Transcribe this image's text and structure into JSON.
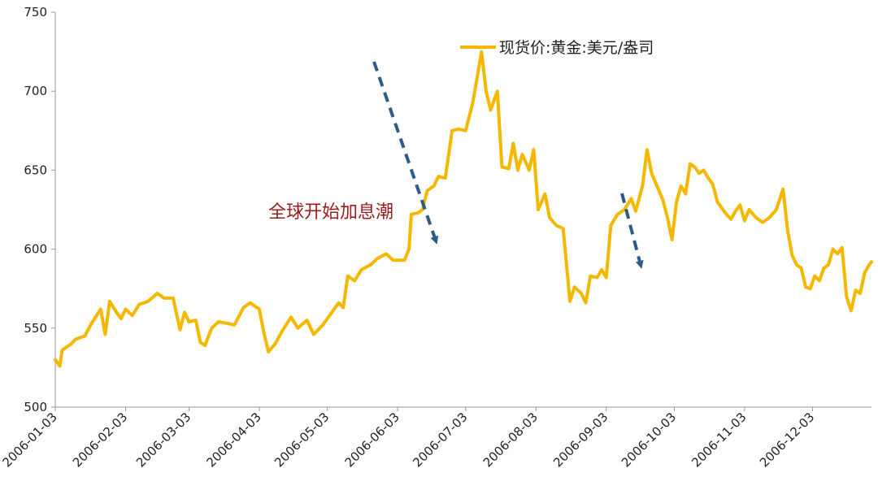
{
  "chart_data": {
    "type": "line",
    "title": "",
    "xlabel": "",
    "ylabel": "",
    "ylim": [
      500,
      750
    ],
    "y_ticks": [
      "500",
      "550",
      "600",
      "650",
      "700",
      "750"
    ],
    "x_ticks": [
      "2006-01-03",
      "2006-02-03",
      "2006-03-03",
      "2006-04-03",
      "2006-05-03",
      "2006-06-03",
      "2006-07-03",
      "2006-08-03",
      "2006-09-03",
      "2006-10-03",
      "2006-11-03",
      "2006-12-03"
    ],
    "x_range": [
      "2006-01-03",
      "2006-12-29"
    ],
    "grid": false,
    "legend": "top-right",
    "series": [
      {
        "name": "现货价:黄金:美元/盎司",
        "color": "#f5b800",
        "points": [
          [
            "2006-01-03",
            530
          ],
          [
            "2006-01-05",
            526
          ],
          [
            "2006-01-06",
            536
          ],
          [
            "2006-01-10",
            540
          ],
          [
            "2006-01-12",
            543
          ],
          [
            "2006-01-16",
            545
          ],
          [
            "2006-01-19",
            553
          ],
          [
            "2006-01-23",
            562
          ],
          [
            "2006-01-25",
            546
          ],
          [
            "2006-01-27",
            567
          ],
          [
            "2006-01-30",
            560
          ],
          [
            "2006-02-01",
            556
          ],
          [
            "2006-02-03",
            562
          ],
          [
            "2006-02-06",
            558
          ],
          [
            "2006-02-09",
            565
          ],
          [
            "2006-02-13",
            567
          ],
          [
            "2006-02-17",
            572
          ],
          [
            "2006-02-20",
            569
          ],
          [
            "2006-02-24",
            569
          ],
          [
            "2006-02-27",
            549
          ],
          [
            "2006-03-01",
            560
          ],
          [
            "2006-03-03",
            554
          ],
          [
            "2006-03-06",
            555
          ],
          [
            "2006-03-08",
            541
          ],
          [
            "2006-03-10",
            539
          ],
          [
            "2006-03-13",
            550
          ],
          [
            "2006-03-16",
            554
          ],
          [
            "2006-03-20",
            553
          ],
          [
            "2006-03-23",
            552
          ],
          [
            "2006-03-27",
            563
          ],
          [
            "2006-03-30",
            566
          ],
          [
            "2006-04-03",
            562
          ],
          [
            "2006-04-05",
            547
          ],
          [
            "2006-04-07",
            535
          ],
          [
            "2006-04-10",
            540
          ],
          [
            "2006-04-13",
            548
          ],
          [
            "2006-04-17",
            557
          ],
          [
            "2006-04-20",
            550
          ],
          [
            "2006-04-24",
            555
          ],
          [
            "2006-04-27",
            546
          ],
          [
            "2006-05-01",
            552
          ],
          [
            "2006-05-04",
            558
          ],
          [
            "2006-05-08",
            566
          ],
          [
            "2006-05-10",
            563
          ],
          [
            "2006-05-12",
            583
          ],
          [
            "2006-05-15",
            580
          ],
          [
            "2006-05-18",
            587
          ],
          [
            "2006-05-22",
            590
          ],
          [
            "2006-05-25",
            594
          ],
          [
            "2006-05-29",
            597
          ],
          [
            "2006-06-01",
            593
          ],
          [
            "2006-06-03",
            593
          ],
          [
            "2006-06-06",
            593
          ],
          [
            "2006-06-08",
            600
          ],
          [
            "2006-06-09",
            622
          ],
          [
            "2006-06-12",
            623
          ],
          [
            "2006-06-14",
            625
          ],
          [
            "2006-06-16",
            637
          ],
          [
            "2006-06-19",
            640
          ],
          [
            "2006-06-21",
            646
          ],
          [
            "2006-06-24",
            645
          ],
          [
            "2006-06-27",
            675
          ],
          [
            "2006-06-30",
            676
          ],
          [
            "2006-07-03",
            675
          ],
          [
            "2006-07-06",
            692
          ],
          [
            "2006-07-08",
            708
          ],
          [
            "2006-07-10",
            725
          ],
          [
            "2006-07-12",
            700
          ],
          [
            "2006-07-14",
            688
          ],
          [
            "2006-07-17",
            700
          ],
          [
            "2006-07-19",
            652
          ],
          [
            "2006-07-22",
            651
          ],
          [
            "2006-07-24",
            667
          ],
          [
            "2006-07-26",
            650
          ],
          [
            "2006-07-28",
            660
          ],
          [
            "2006-07-31",
            650
          ],
          [
            "2006-08-02",
            663
          ],
          [
            "2006-08-04",
            625
          ],
          [
            "2006-08-07",
            635
          ],
          [
            "2006-08-09",
            620
          ],
          [
            "2006-08-12",
            615
          ],
          [
            "2006-08-15",
            613
          ],
          [
            "2006-08-18",
            567
          ],
          [
            "2006-08-20",
            576
          ],
          [
            "2006-08-23",
            572
          ],
          [
            "2006-08-25",
            566
          ],
          [
            "2006-08-27",
            583
          ],
          [
            "2006-08-30",
            582
          ],
          [
            "2006-09-01",
            587
          ],
          [
            "2006-09-03",
            582
          ],
          [
            "2006-09-05",
            615
          ],
          [
            "2006-09-08",
            622
          ],
          [
            "2006-09-11",
            625
          ],
          [
            "2006-09-14",
            632
          ],
          [
            "2006-09-16",
            624
          ],
          [
            "2006-09-19",
            640
          ],
          [
            "2006-09-21",
            663
          ],
          [
            "2006-09-23",
            648
          ],
          [
            "2006-09-26",
            638
          ],
          [
            "2006-09-28",
            631
          ],
          [
            "2006-09-30",
            620
          ],
          [
            "2006-10-02",
            606
          ],
          [
            "2006-10-04",
            630
          ],
          [
            "2006-10-06",
            640
          ],
          [
            "2006-10-08",
            635
          ],
          [
            "2006-10-10",
            654
          ],
          [
            "2006-10-12",
            652
          ],
          [
            "2006-10-14",
            648
          ],
          [
            "2006-10-16",
            650
          ],
          [
            "2006-10-18",
            645
          ],
          [
            "2006-10-20",
            641
          ],
          [
            "2006-10-22",
            630
          ],
          [
            "2006-10-24",
            626
          ],
          [
            "2006-10-26",
            622
          ],
          [
            "2006-10-28",
            619
          ],
          [
            "2006-10-30",
            624
          ],
          [
            "2006-11-01",
            628
          ],
          [
            "2006-11-03",
            618
          ],
          [
            "2006-11-05",
            625
          ],
          [
            "2006-11-08",
            620
          ],
          [
            "2006-11-11",
            617
          ],
          [
            "2006-11-14",
            620
          ],
          [
            "2006-11-17",
            625
          ],
          [
            "2006-11-20",
            638
          ],
          [
            "2006-11-22",
            612
          ],
          [
            "2006-11-24",
            596
          ],
          [
            "2006-11-26",
            590
          ],
          [
            "2006-11-28",
            588
          ],
          [
            "2006-11-30",
            576
          ],
          [
            "2006-12-02",
            575
          ],
          [
            "2006-12-04",
            583
          ],
          [
            "2006-12-06",
            580
          ],
          [
            "2006-12-08",
            588
          ],
          [
            "2006-12-10",
            590
          ],
          [
            "2006-12-12",
            600
          ],
          [
            "2006-12-14",
            597
          ],
          [
            "2006-12-16",
            601
          ],
          [
            "2006-12-18",
            570
          ],
          [
            "2006-12-20",
            561
          ],
          [
            "2006-12-22",
            574
          ],
          [
            "2006-12-24",
            572
          ],
          [
            "2006-12-26",
            585
          ],
          [
            "2006-12-28",
            590
          ],
          [
            "2006-12-29",
            592
          ]
        ]
      }
    ],
    "annotations": [
      {
        "text": "全球开始加息潮"
      }
    ]
  }
}
